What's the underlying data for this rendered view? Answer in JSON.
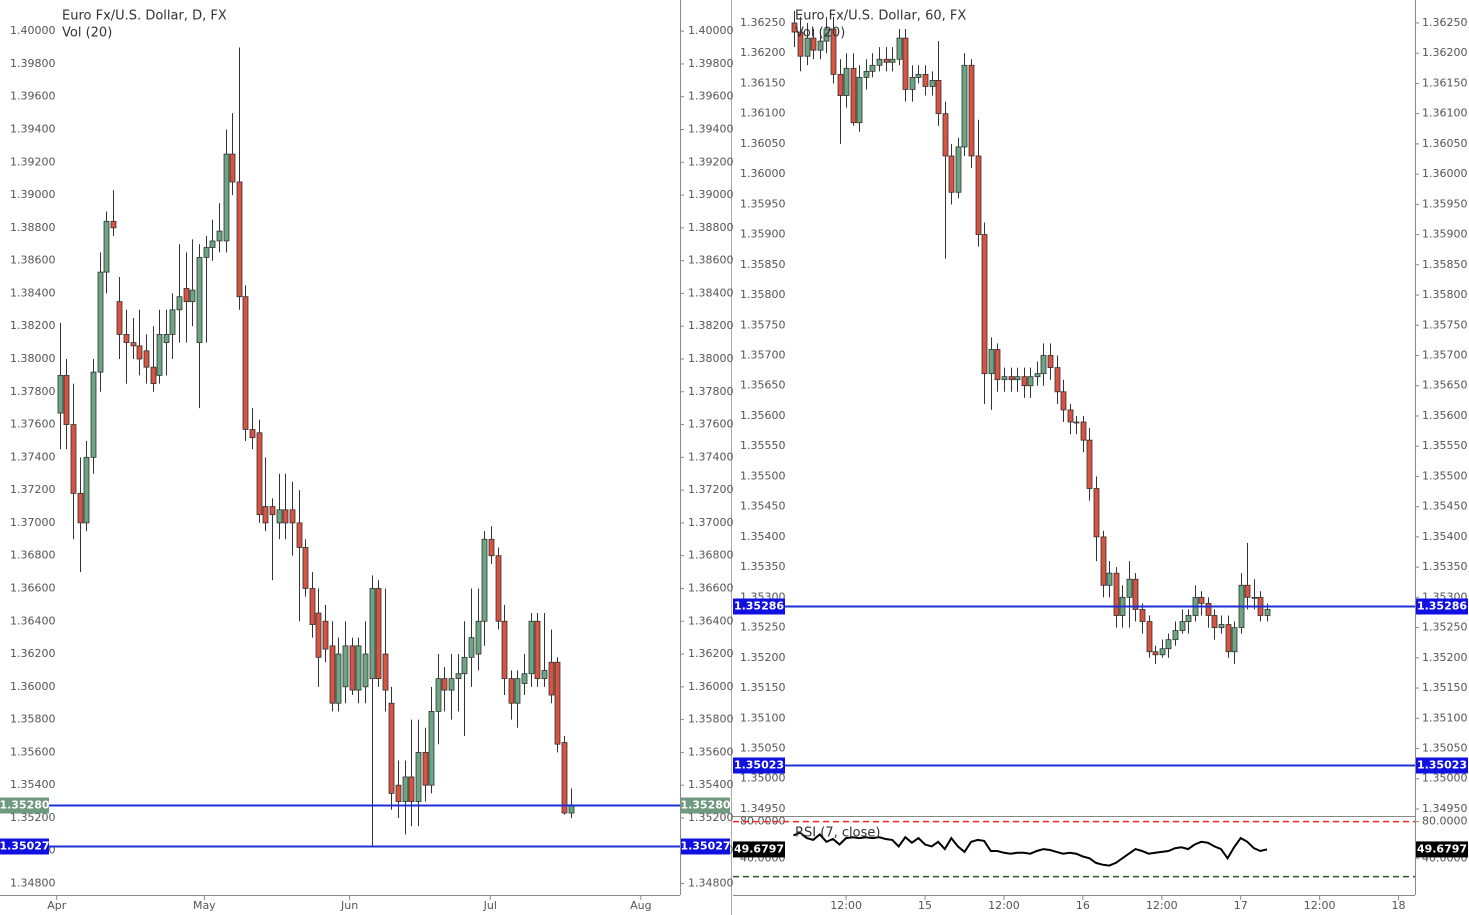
{
  "chart_data": [
    {
      "type": "candlestick",
      "title": "Euro Fx/U.S. Dollar, D, FX",
      "subtitle": "Vol (20)",
      "up_color": "#6ba583",
      "down_color": "#d75442",
      "x": [
        0,
        1,
        2,
        3,
        4,
        5,
        6,
        7,
        8,
        9,
        10,
        11,
        12,
        13,
        14,
        15,
        16,
        17,
        18,
        19,
        20,
        21,
        22,
        23,
        24,
        25,
        26,
        27,
        28,
        29,
        30,
        31,
        32,
        33,
        34,
        35,
        36,
        37,
        38,
        39,
        40,
        41,
        42,
        43,
        44,
        45,
        46,
        47,
        48,
        49,
        50,
        51,
        52,
        53,
        54,
        55,
        56,
        57,
        58,
        59,
        60,
        61,
        62,
        63,
        64,
        65,
        66,
        67,
        68,
        69,
        70,
        71,
        72,
        73,
        74,
        75,
        76,
        77
      ],
      "open": [
        1.3767,
        1.379,
        1.376,
        1.3718,
        1.37,
        1.374,
        1.3792,
        1.3853,
        1.3884,
        1.3835,
        1.3815,
        1.381,
        1.3808,
        1.3805,
        1.3795,
        1.379,
        1.381,
        1.3815,
        1.383,
        1.3843,
        1.3835,
        1.381,
        1.3862,
        1.3868,
        1.3872,
        1.3872,
        1.3925,
        1.3908,
        1.3838,
        1.3757,
        1.3755,
        1.371,
        1.371,
        1.37,
        1.3708,
        1.3708,
        1.37,
        1.3685,
        1.366,
        1.3645,
        1.364,
        1.3625,
        1.359,
        1.36,
        1.3625,
        1.3598,
        1.36,
        1.3605,
        1.366,
        1.362,
        1.359,
        1.354,
        1.353,
        1.3545,
        1.353,
        1.356,
        1.354,
        1.3585,
        1.3605,
        1.3598,
        1.3605,
        1.3608,
        1.3618,
        1.362,
        1.364,
        1.369,
        1.368,
        1.364,
        1.3605,
        1.359,
        1.3602,
        1.3608,
        1.364,
        1.3605,
        1.3615,
        1.3615,
        1.3566,
        1.3523
      ],
      "high": [
        1.3822,
        1.38,
        1.3785,
        1.374,
        1.375,
        1.38,
        1.3865,
        1.389,
        1.3903,
        1.385,
        1.383,
        1.3825,
        1.383,
        1.3815,
        1.382,
        1.383,
        1.383,
        1.384,
        1.387,
        1.3865,
        1.3873,
        1.387,
        1.3875,
        1.3885,
        1.3895,
        1.394,
        1.395,
        1.399,
        1.3845,
        1.377,
        1.3763,
        1.374,
        1.3715,
        1.373,
        1.373,
        1.3725,
        1.372,
        1.369,
        1.367,
        1.366,
        1.365,
        1.364,
        1.363,
        1.364,
        1.363,
        1.363,
        1.364,
        1.3668,
        1.3665,
        1.366,
        1.36,
        1.3555,
        1.3555,
        1.358,
        1.358,
        1.3575,
        1.36,
        1.362,
        1.3612,
        1.362,
        1.362,
        1.364,
        1.366,
        1.366,
        1.3695,
        1.3698,
        1.3685,
        1.365,
        1.361,
        1.361,
        1.362,
        1.3645,
        1.3645,
        1.3645,
        1.3635,
        1.3618,
        1.357,
        1.3538
      ],
      "low": [
        1.3745,
        1.3745,
        1.369,
        1.367,
        1.3695,
        1.373,
        1.378,
        1.384,
        1.3875,
        1.38,
        1.3785,
        1.38,
        1.379,
        1.3785,
        1.378,
        1.3785,
        1.379,
        1.38,
        1.381,
        1.381,
        1.382,
        1.377,
        1.381,
        1.386,
        1.3865,
        1.3865,
        1.39,
        1.383,
        1.375,
        1.3745,
        1.37,
        1.3695,
        1.3665,
        1.369,
        1.369,
        1.368,
        1.364,
        1.3655,
        1.363,
        1.36,
        1.3615,
        1.3585,
        1.3585,
        1.359,
        1.3595,
        1.359,
        1.359,
        1.3503,
        1.36,
        1.3585,
        1.3525,
        1.352,
        1.351,
        1.3515,
        1.3515,
        1.353,
        1.3535,
        1.3565,
        1.3585,
        1.358,
        1.3585,
        1.357,
        1.36,
        1.361,
        1.3625,
        1.3675,
        1.3635,
        1.3595,
        1.358,
        1.3575,
        1.3595,
        1.36,
        1.36,
        1.36,
        1.359,
        1.356,
        1.3522,
        1.352
      ],
      "close": [
        1.379,
        1.376,
        1.3718,
        1.37,
        1.374,
        1.3792,
        1.3853,
        1.3884,
        1.388,
        1.3815,
        1.381,
        1.3808,
        1.38,
        1.3795,
        1.3785,
        1.3815,
        1.3815,
        1.383,
        1.3838,
        1.3835,
        1.3842,
        1.3862,
        1.3868,
        1.3872,
        1.3878,
        1.3925,
        1.3908,
        1.3838,
        1.3757,
        1.3752,
        1.3705,
        1.37,
        1.3705,
        1.3708,
        1.37,
        1.37,
        1.3685,
        1.366,
        1.3638,
        1.3618,
        1.3623,
        1.359,
        1.362,
        1.3625,
        1.3598,
        1.3625,
        1.362,
        1.366,
        1.3605,
        1.3598,
        1.3535,
        1.353,
        1.3545,
        1.353,
        1.356,
        1.354,
        1.3585,
        1.3605,
        1.3598,
        1.3605,
        1.3608,
        1.3618,
        1.363,
        1.364,
        1.369,
        1.368,
        1.364,
        1.3605,
        1.359,
        1.3605,
        1.3608,
        1.364,
        1.3605,
        1.361,
        1.3595,
        1.3565,
        1.3523,
        1.3528
      ],
      "xlim": [
        -9,
        93.5
      ],
      "xticks": [
        {
          "value": -0.45,
          "label": "Apr"
        },
        {
          "value": 21.8,
          "label": "May"
        },
        {
          "value": 43.7,
          "label": "Jun"
        },
        {
          "value": 64.9,
          "label": "Jul"
        },
        {
          "value": 87.6,
          "label": "Aug"
        }
      ],
      "ylim": [
        1.3473,
        1.4019
      ],
      "yticks": [
        {
          "value": 1.348,
          "label": "1.34800"
        },
        {
          "value": 1.35,
          "label": "1.35000"
        },
        {
          "value": 1.352,
          "label": "1.35200"
        },
        {
          "value": 1.354,
          "label": "1.35400"
        },
        {
          "value": 1.356,
          "label": "1.35600"
        },
        {
          "value": 1.358,
          "label": "1.35800"
        },
        {
          "value": 1.36,
          "label": "1.36000"
        },
        {
          "value": 1.362,
          "label": "1.36200"
        },
        {
          "value": 1.364,
          "label": "1.36400"
        },
        {
          "value": 1.366,
          "label": "1.36600"
        },
        {
          "value": 1.368,
          "label": "1.36800"
        },
        {
          "value": 1.37,
          "label": "1.37000"
        },
        {
          "value": 1.372,
          "label": "1.37200"
        },
        {
          "value": 1.374,
          "label": "1.37400"
        },
        {
          "value": 1.376,
          "label": "1.37600"
        },
        {
          "value": 1.378,
          "label": "1.37800"
        },
        {
          "value": 1.38,
          "label": "1.38000"
        },
        {
          "value": 1.382,
          "label": "1.38200"
        },
        {
          "value": 1.384,
          "label": "1.38400"
        },
        {
          "value": 1.386,
          "label": "1.38600"
        },
        {
          "value": 1.388,
          "label": "1.38800"
        },
        {
          "value": 1.39,
          "label": "1.39000"
        },
        {
          "value": 1.392,
          "label": "1.39200"
        },
        {
          "value": 1.394,
          "label": "1.39400"
        },
        {
          "value": 1.396,
          "label": "1.39600"
        },
        {
          "value": 1.398,
          "label": "1.39800"
        },
        {
          "value": 1.4,
          "label": "1.40000"
        }
      ],
      "hlines": [
        {
          "value": 1.3528,
          "label": "1.35280",
          "color": "#1f2fd6",
          "tag_color": "#6e9a7f"
        },
        {
          "value": 1.35027,
          "label": "1.35027",
          "color": "#1f2fd6",
          "tag_color": "#1010e0"
        }
      ]
    },
    {
      "type": "candlestick",
      "title": "Euro Fx/U.S. Dollar, 60, FX",
      "subtitle": "Vol (20)",
      "up_color": "#6ba583",
      "down_color": "#d75442",
      "x": [
        -20,
        -19,
        -18,
        -17,
        -16,
        -15,
        -14,
        -13,
        -12,
        -11,
        -10,
        -9,
        -8,
        -7,
        -6,
        -5,
        -4,
        -3,
        -2,
        -1,
        0,
        1,
        2,
        3,
        4,
        5,
        6,
        7,
        8,
        9,
        10,
        11,
        12,
        13,
        14,
        15,
        16,
        17,
        18,
        19,
        20,
        21,
        22,
        23,
        24,
        25,
        26,
        27,
        28,
        29,
        30,
        31,
        32,
        33,
        34,
        35,
        36,
        37,
        38,
        39,
        40,
        41,
        42,
        43,
        44,
        45,
        46,
        47,
        48,
        49,
        50,
        51,
        52
      ],
      "open": [
        1.3625,
        1.36235,
        1.36195,
        1.36225,
        1.36205,
        1.3622,
        1.3624,
        1.36165,
        1.3613,
        1.36175,
        1.36085,
        1.3616,
        1.3617,
        1.3618,
        1.3619,
        1.36185,
        1.3619,
        1.36225,
        1.3614,
        1.3616,
        1.36165,
        1.36145,
        1.36155,
        1.361,
        1.3603,
        1.3597,
        1.36045,
        1.3618,
        1.3603,
        1.359,
        1.3567,
        1.3571,
        1.3566,
        1.35665,
        1.3566,
        1.35665,
        1.3565,
        1.35665,
        1.3567,
        1.357,
        1.3568,
        1.3564,
        1.3561,
        1.3559,
        1.3559,
        1.3556,
        1.3548,
        1.354,
        1.3532,
        1.3534,
        1.3527,
        1.353,
        1.3533,
        1.3528,
        1.3526,
        1.3521,
        1.35205,
        1.35215,
        1.3523,
        1.35245,
        1.3526,
        1.3527,
        1.353,
        1.3529,
        1.3527,
        1.3525,
        1.35255,
        1.3521,
        1.3525,
        1.3532,
        1.353,
        1.353,
        1.3527
      ],
      "high": [
        1.3627,
        1.3626,
        1.3625,
        1.3624,
        1.3624,
        1.3626,
        1.3626,
        1.3619,
        1.362,
        1.362,
        1.3618,
        1.3619,
        1.362,
        1.3621,
        1.3621,
        1.3621,
        1.3624,
        1.3624,
        1.3618,
        1.3618,
        1.3618,
        1.3617,
        1.3622,
        1.3612,
        1.3605,
        1.3606,
        1.362,
        1.3619,
        1.3609,
        1.3592,
        1.3573,
        1.3572,
        1.3568,
        1.3568,
        1.3568,
        1.3568,
        1.3568,
        1.3569,
        1.3572,
        1.3572,
        1.357,
        1.3566,
        1.3562,
        1.356,
        1.356,
        1.3558,
        1.355,
        1.3541,
        1.3536,
        1.3535,
        1.3532,
        1.3536,
        1.3534,
        1.3529,
        1.3527,
        1.3522,
        1.3523,
        1.3524,
        1.3526,
        1.3528,
        1.3528,
        1.3532,
        1.3531,
        1.353,
        1.3528,
        1.3527,
        1.3527,
        1.3526,
        1.3534,
        1.3539,
        1.3533,
        1.3531,
        1.3529
      ],
      "low": [
        1.3621,
        1.3617,
        1.3618,
        1.3619,
        1.3619,
        1.362,
        1.3615,
        1.3605,
        1.3611,
        1.3608,
        1.3607,
        1.3614,
        1.3616,
        1.3617,
        1.3617,
        1.3617,
        1.3618,
        1.3612,
        1.3612,
        1.3615,
        1.3613,
        1.3613,
        1.3608,
        1.3586,
        1.3595,
        1.3596,
        1.3603,
        1.3601,
        1.3588,
        1.3562,
        1.3561,
        1.3564,
        1.3564,
        1.3564,
        1.3564,
        1.3563,
        1.3563,
        1.3565,
        1.3565,
        1.3566,
        1.3562,
        1.3559,
        1.3557,
        1.3557,
        1.3554,
        1.3546,
        1.3536,
        1.353,
        1.353,
        1.3525,
        1.3525,
        1.3525,
        1.3526,
        1.3524,
        1.352,
        1.3519,
        1.352,
        1.352,
        1.3522,
        1.3524,
        1.3524,
        1.3526,
        1.3527,
        1.3525,
        1.3523,
        1.3524,
        1.352,
        1.3519,
        1.3524,
        1.3528,
        1.3528,
        1.3526,
        1.3526
      ],
      "close": [
        1.36235,
        1.36195,
        1.36225,
        1.36205,
        1.3622,
        1.3624,
        1.36165,
        1.3613,
        1.36175,
        1.36085,
        1.3616,
        1.3617,
        1.3618,
        1.3619,
        1.36185,
        1.3619,
        1.36225,
        1.3614,
        1.3616,
        1.36165,
        1.36145,
        1.36155,
        1.361,
        1.3603,
        1.3597,
        1.36045,
        1.3618,
        1.3603,
        1.359,
        1.3567,
        1.3571,
        1.3566,
        1.35665,
        1.3566,
        1.35665,
        1.3565,
        1.35665,
        1.3567,
        1.357,
        1.3568,
        1.3564,
        1.3561,
        1.3559,
        1.3559,
        1.3556,
        1.3548,
        1.354,
        1.3532,
        1.3534,
        1.3527,
        1.353,
        1.3533,
        1.3528,
        1.3526,
        1.3521,
        1.35205,
        1.35215,
        1.3523,
        1.35245,
        1.3526,
        1.3527,
        1.353,
        1.3529,
        1.3527,
        1.3525,
        1.35255,
        1.3521,
        1.3525,
        1.3532,
        1.353,
        1.353,
        1.3527,
        1.3528
      ],
      "xlim": [
        -29.2,
        74.5
      ],
      "xticks": [
        {
          "value": -12,
          "label": "12:00"
        },
        {
          "value": 0,
          "label": "15"
        },
        {
          "value": 12,
          "label": "12:00"
        },
        {
          "value": 24,
          "label": "16"
        },
        {
          "value": 36,
          "label": "12:00"
        },
        {
          "value": 48,
          "label": "17"
        },
        {
          "value": 60,
          "label": "12:00"
        },
        {
          "value": 72,
          "label": "18"
        }
      ],
      "ylim": [
        1.3494,
        1.36288
      ],
      "yticks": [
        {
          "value": 1.3495,
          "label": "1.34950"
        },
        {
          "value": 1.35,
          "label": "1.35000"
        },
        {
          "value": 1.3505,
          "label": "1.35050"
        },
        {
          "value": 1.351,
          "label": "1.35100"
        },
        {
          "value": 1.3515,
          "label": "1.35150"
        },
        {
          "value": 1.352,
          "label": "1.35200"
        },
        {
          "value": 1.3525,
          "label": "1.35250"
        },
        {
          "value": 1.353,
          "label": "1.35300"
        },
        {
          "value": 1.3535,
          "label": "1.35350"
        },
        {
          "value": 1.354,
          "label": "1.35400"
        },
        {
          "value": 1.3545,
          "label": "1.35450"
        },
        {
          "value": 1.355,
          "label": "1.35500"
        },
        {
          "value": 1.3555,
          "label": "1.35550"
        },
        {
          "value": 1.356,
          "label": "1.35600"
        },
        {
          "value": 1.3565,
          "label": "1.35650"
        },
        {
          "value": 1.357,
          "label": "1.35700"
        },
        {
          "value": 1.3575,
          "label": "1.35750"
        },
        {
          "value": 1.358,
          "label": "1.35800"
        },
        {
          "value": 1.3585,
          "label": "1.35850"
        },
        {
          "value": 1.359,
          "label": "1.35900"
        },
        {
          "value": 1.3595,
          "label": "1.35950"
        },
        {
          "value": 1.36,
          "label": "1.36000"
        },
        {
          "value": 1.3605,
          "label": "1.36050"
        },
        {
          "value": 1.361,
          "label": "1.36100"
        },
        {
          "value": 1.3615,
          "label": "1.36150"
        },
        {
          "value": 1.362,
          "label": "1.36200"
        },
        {
          "value": 1.3625,
          "label": "1.36250"
        }
      ],
      "hlines": [
        {
          "value": 1.35286,
          "label": "1.35286",
          "color": "#1f2fd6",
          "tag_color": "#1010e0"
        },
        {
          "value": 1.35023,
          "label": "1.35023",
          "color": "#1f2fd6",
          "tag_color": "#1010e0"
        }
      ],
      "indicator": {
        "type": "line",
        "name": "RSI (7, close)",
        "color": "#000000",
        "values": [
          65,
          68,
          62,
          60,
          66,
          58,
          61,
          55,
          62,
          63,
          62,
          63,
          62,
          63,
          61,
          60,
          53,
          63,
          57,
          62,
          55,
          53,
          58,
          50,
          62,
          53,
          47,
          58,
          60,
          59,
          48,
          48,
          46,
          45,
          46,
          46,
          45,
          48,
          50,
          49,
          47,
          45,
          46,
          45,
          42,
          40,
          35,
          33,
          32,
          35,
          40,
          45,
          50,
          48,
          45,
          46,
          47,
          48,
          51,
          52,
          50,
          55,
          58,
          57,
          53,
          50,
          40,
          52,
          62,
          58,
          51,
          48,
          49.6797
        ],
        "ylim": [
          0,
          85
        ],
        "yticks": [
          {
            "value": 80,
            "label": "80.0000"
          },
          {
            "value": 40,
            "label": "40.0000"
          }
        ],
        "levels": [
          {
            "value": 80,
            "color": "#ff2020"
          },
          {
            "value": 20,
            "color": "#2d5a1e"
          }
        ]
      }
    }
  ]
}
